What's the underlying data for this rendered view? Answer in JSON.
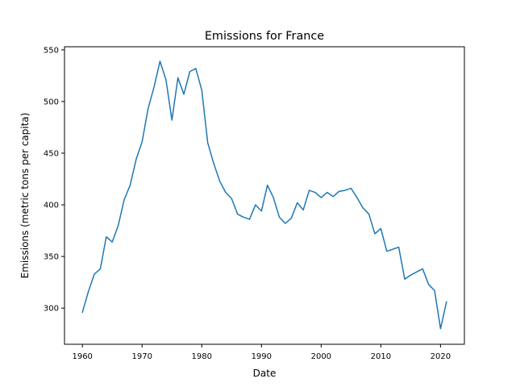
{
  "chart_data": {
    "type": "line",
    "title": "Emissions for France",
    "xlabel": "Date",
    "ylabel": "Emissions (metric tons per capita)",
    "xlim": [
      1957,
      2024
    ],
    "ylim": [
      265,
      553
    ],
    "x_ticks": [
      1960,
      1970,
      1980,
      1990,
      2000,
      2010,
      2020
    ],
    "y_ticks": [
      300,
      350,
      400,
      450,
      500,
      550
    ],
    "grid": false,
    "legend": "none",
    "series": [
      {
        "color": "#1f77b4",
        "x": [
          1960,
          1961,
          1962,
          1963,
          1964,
          1965,
          1966,
          1967,
          1968,
          1969,
          1970,
          1971,
          1972,
          1973,
          1974,
          1975,
          1976,
          1977,
          1978,
          1979,
          1980,
          1981,
          1982,
          1983,
          1984,
          1985,
          1986,
          1987,
          1988,
          1989,
          1990,
          1991,
          1992,
          1993,
          1994,
          1995,
          1996,
          1997,
          1998,
          1999,
          2000,
          2001,
          2002,
          2003,
          2004,
          2005,
          2006,
          2007,
          2008,
          2009,
          2010,
          2011,
          2012,
          2013,
          2014,
          2015,
          2016,
          2017,
          2018,
          2019,
          2020,
          2021
        ],
        "values": [
          296,
          316,
          333,
          338,
          369,
          364,
          380,
          405,
          419,
          444,
          461,
          493,
          514,
          539,
          521,
          482,
          523,
          507,
          529,
          532,
          511,
          460,
          440,
          423,
          412,
          406,
          391,
          388,
          386,
          400,
          394,
          419,
          407,
          388,
          382,
          387,
          402,
          395,
          414,
          412,
          407,
          412,
          408,
          413,
          414,
          416,
          407,
          397,
          391,
          372,
          377,
          355,
          357,
          359,
          328,
          332,
          335,
          338,
          323,
          317,
          280,
          306
        ]
      }
    ]
  }
}
